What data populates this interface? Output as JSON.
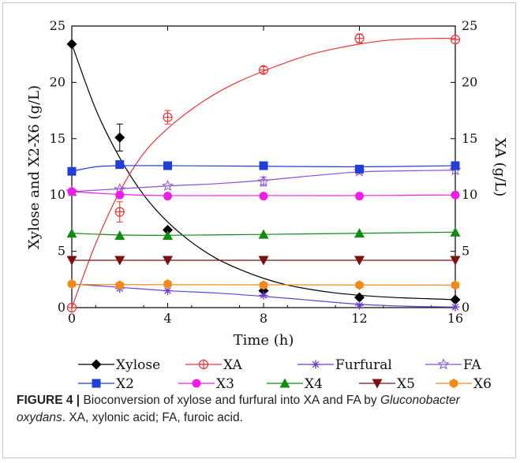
{
  "figure": {
    "label": "FIGURE 4 |",
    "caption_start": " Bioconversion of xylose and furfural into XA and FA by ",
    "caption_italic": "Gluconobacter oxydans",
    "caption_end": ". XA, xylonic acid; FA, furoic acid."
  },
  "chart_data": {
    "type": "line",
    "xlabel": "Time (h)",
    "ylabel": "Xylose and X2-X6 (g/L)",
    "y2label": "XA (g/L)",
    "xlim": [
      0,
      16
    ],
    "ylim": [
      0,
      25
    ],
    "y2lim": [
      0,
      25
    ],
    "xticks": [
      0,
      4,
      8,
      12,
      16
    ],
    "yticks": [
      0,
      5,
      10,
      15,
      20,
      25
    ],
    "y2ticks": [
      0,
      5,
      10,
      15,
      20,
      25
    ],
    "grid": false,
    "legend_position": "bottom",
    "series": [
      {
        "name": "Xylose",
        "color": "#000000",
        "marker": "diamond",
        "x": [
          0,
          2,
          4,
          8,
          12,
          16
        ],
        "y": [
          23.4,
          15.1,
          6.9,
          1.5,
          0.9,
          0.7
        ],
        "err": [
          0,
          1.2,
          0,
          0,
          0,
          0
        ],
        "fit_x": [
          0,
          1,
          2,
          3,
          4,
          5,
          6,
          7,
          8,
          9,
          10,
          11,
          12,
          13,
          14,
          15,
          16
        ],
        "fit_y": [
          23.4,
          17.6,
          13.3,
          10.0,
          7.6,
          5.8,
          4.4,
          3.4,
          2.6,
          2.0,
          1.6,
          1.3,
          1.1,
          0.95,
          0.85,
          0.78,
          0.7
        ]
      },
      {
        "name": "XA",
        "color": "#e8363a",
        "marker": "circle-plus",
        "x": [
          0,
          2,
          4,
          8,
          12,
          16
        ],
        "y": [
          0,
          8.5,
          16.9,
          21.1,
          23.9,
          23.8
        ],
        "err": [
          0,
          0.9,
          0.6,
          0.3,
          0.4,
          0
        ],
        "fit_x": [
          0,
          1,
          2,
          3,
          4,
          5,
          6,
          7,
          8,
          9,
          10,
          11,
          12,
          13,
          14,
          15,
          16
        ],
        "fit_y": [
          0,
          5.7,
          10.3,
          13.7,
          15.9,
          17.6,
          19.0,
          20.1,
          21.0,
          21.8,
          22.5,
          23.0,
          23.4,
          23.7,
          23.85,
          23.9,
          23.9
        ]
      },
      {
        "name": "Furfural",
        "color": "#6a3fd0",
        "marker": "asterisk",
        "x": [
          0,
          2,
          4,
          8,
          12,
          16
        ],
        "y": [
          2.1,
          1.7,
          1.5,
          1.1,
          0.2,
          0.05
        ],
        "err": [
          0,
          0,
          0,
          0,
          0,
          0
        ],
        "fit_x": [
          0,
          2,
          4,
          6,
          8,
          10,
          12,
          14,
          16
        ],
        "fit_y": [
          2.1,
          1.8,
          1.5,
          1.3,
          1.0,
          0.65,
          0.3,
          0.12,
          0.05
        ]
      },
      {
        "name": "FA",
        "color": "#8a4fd6",
        "marker": "star",
        "x": [
          0,
          2,
          4,
          8,
          12,
          16
        ],
        "y": [
          10.3,
          10.5,
          10.8,
          11.2,
          12.1,
          12.2
        ],
        "err": [
          0,
          0,
          0,
          0.4,
          0,
          0
        ],
        "fit_x": [
          0,
          2,
          4,
          6,
          8,
          10,
          12,
          14,
          16
        ],
        "fit_y": [
          10.3,
          10.55,
          10.8,
          11.0,
          11.3,
          11.7,
          12.05,
          12.15,
          12.2
        ]
      },
      {
        "name": "X2",
        "color": "#1f3fd8",
        "marker": "square",
        "x": [
          0,
          2,
          4,
          8,
          12,
          16
        ],
        "y": [
          12.1,
          12.7,
          12.6,
          12.6,
          12.3,
          12.6
        ],
        "err": [
          0,
          0,
          0,
          0,
          0,
          0
        ],
        "fit_x": [
          0,
          1,
          2,
          4,
          8,
          12,
          16
        ],
        "fit_y": [
          12.1,
          12.5,
          12.6,
          12.6,
          12.55,
          12.5,
          12.6
        ]
      },
      {
        "name": "X3",
        "color": "#ee1ee6",
        "marker": "circle",
        "x": [
          0,
          2,
          4,
          8,
          12,
          16
        ],
        "y": [
          10.3,
          10.0,
          9.9,
          9.9,
          9.9,
          10.0
        ],
        "err": [
          0,
          0,
          0,
          0,
          0,
          0
        ],
        "fit_x": [
          0,
          2,
          4,
          8,
          12,
          16
        ],
        "fit_y": [
          10.3,
          10.05,
          9.95,
          9.95,
          9.95,
          10.0
        ]
      },
      {
        "name": "X4",
        "color": "#138a13",
        "marker": "triangle",
        "x": [
          0,
          2,
          4,
          8,
          12,
          16
        ],
        "y": [
          6.6,
          6.4,
          6.4,
          6.5,
          6.6,
          6.7
        ],
        "err": [
          0,
          0,
          0,
          0,
          0,
          0
        ],
        "fit_x": [
          0,
          2,
          4,
          8,
          12,
          16
        ],
        "fit_y": [
          6.6,
          6.45,
          6.42,
          6.5,
          6.6,
          6.7
        ]
      },
      {
        "name": "X5",
        "color": "#7a1010",
        "marker": "triangle-down",
        "x": [
          0,
          2,
          4,
          8,
          12,
          16
        ],
        "y": [
          4.2,
          4.2,
          4.2,
          4.2,
          4.2,
          4.2
        ],
        "err": [
          0,
          0,
          0,
          0,
          0,
          0
        ],
        "fit_x": [
          0,
          16
        ],
        "fit_y": [
          4.2,
          4.2
        ]
      },
      {
        "name": "X6",
        "color": "#f08a1c",
        "marker": "hexagon",
        "x": [
          0,
          2,
          4,
          8,
          12,
          16
        ],
        "y": [
          2.1,
          2.0,
          2.1,
          2.0,
          2.0,
          2.0
        ],
        "err": [
          0,
          0,
          0,
          0,
          0,
          0
        ],
        "fit_x": [
          0,
          16
        ],
        "fit_y": [
          2.05,
          2.0
        ]
      }
    ]
  }
}
